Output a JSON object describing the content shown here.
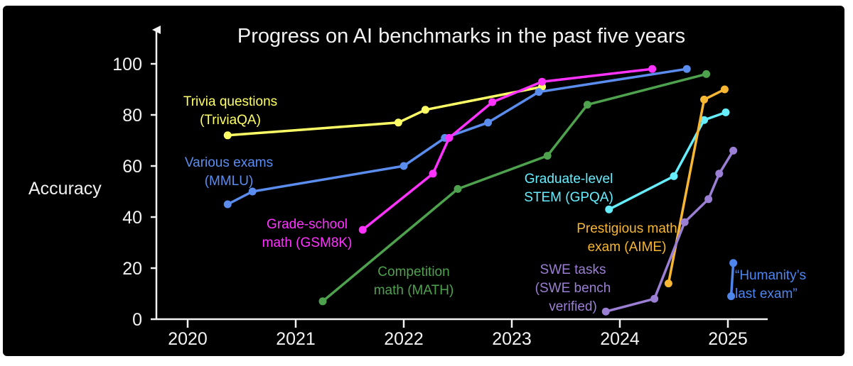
{
  "chart_data": {
    "type": "line",
    "title": "Progress on AI benchmarks in the past five years",
    "xlabel": "",
    "ylabel": "Accuracy",
    "xlim": [
      2019.7,
      2025.3
    ],
    "ylim": [
      0,
      100
    ],
    "x_ticks": [
      "2020",
      "2021",
      "2022",
      "2023",
      "2024",
      "2025"
    ],
    "y_ticks": [
      "0",
      "20",
      "40",
      "60",
      "80",
      "100"
    ],
    "grid": false,
    "series": [
      {
        "id": "triviaqa",
        "name_lines": [
          "Trivia questions",
          "(TriviaQA)"
        ],
        "color": "#ffff66",
        "x": [
          2020.37,
          2021.95,
          2022.2,
          2023.28
        ],
        "y": [
          72,
          77,
          82,
          91
        ]
      },
      {
        "id": "mmlu",
        "name_lines": [
          "Various exams",
          "(MMLU)"
        ],
        "color": "#5b8def",
        "x": [
          2020.37,
          2020.6,
          2022.0,
          2022.38,
          2022.78,
          2023.25,
          2024.62
        ],
        "y": [
          45,
          50,
          60,
          71,
          77,
          89,
          98
        ]
      },
      {
        "id": "gsm8k",
        "name_lines": [
          "Grade-school",
          "math (GSM8K)"
        ],
        "color": "#ff33ff",
        "x": [
          2021.62,
          2022.27,
          2022.42,
          2022.82,
          2023.28,
          2024.3
        ],
        "y": [
          35,
          57,
          71,
          85,
          93,
          98
        ]
      },
      {
        "id": "math",
        "name_lines": [
          "Competition",
          "math (MATH)"
        ],
        "color": "#4ea24e",
        "x": [
          2021.25,
          2022.5,
          2023.33,
          2023.7,
          2024.8
        ],
        "y": [
          7,
          51,
          64,
          84,
          96
        ]
      },
      {
        "id": "gpqa",
        "name_lines": [
          "Graduate-level",
          "STEM (GPQA)"
        ],
        "color": "#66eeff",
        "x": [
          2023.9,
          2024.5,
          2024.78,
          2024.98
        ],
        "y": [
          43,
          56,
          78,
          81
        ]
      },
      {
        "id": "aime",
        "name_lines": [
          "Prestigious math",
          "exam (AIME)"
        ],
        "color": "#f7b733",
        "x": [
          2024.45,
          2024.78,
          2024.97
        ],
        "y": [
          14,
          86,
          90
        ]
      },
      {
        "id": "swebench",
        "name_lines": [
          "SWE tasks",
          "(SWE bench",
          "verified)"
        ],
        "color": "#9b7fd4",
        "x": [
          2023.87,
          2024.32,
          2024.6,
          2024.82,
          2024.92,
          2025.05
        ],
        "y": [
          3,
          8,
          38,
          47,
          57,
          66
        ]
      },
      {
        "id": "hle",
        "name_lines": [
          "“Humanity’s",
          "last exam”"
        ],
        "color": "#4f86ee",
        "x": [
          2025.03,
          2025.05
        ],
        "y": [
          9,
          22
        ]
      }
    ]
  }
}
